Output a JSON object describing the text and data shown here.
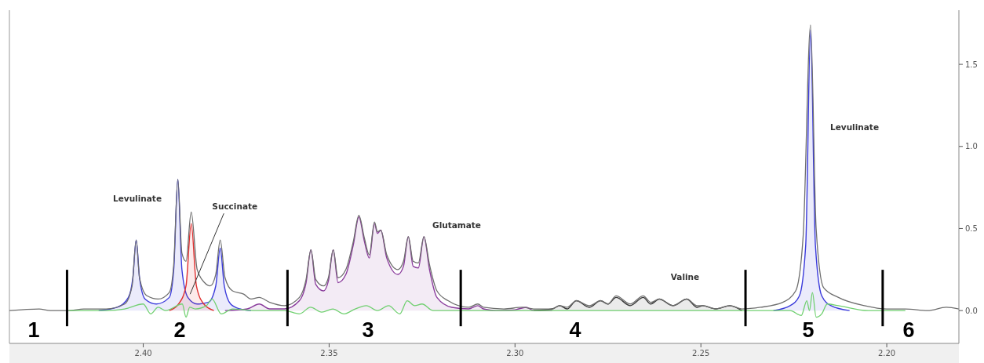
{
  "chart_data": {
    "type": "line",
    "xlim": [
      2.436,
      2.1806
    ],
    "ylim": [
      -0.2,
      1.83
    ],
    "xticks": [
      {
        "value": 2.4,
        "label": "2.40"
      },
      {
        "value": 2.35,
        "label": "2.35"
      },
      {
        "value": 2.3,
        "label": "2.30"
      },
      {
        "value": 2.25,
        "label": "2.25"
      },
      {
        "value": 2.2,
        "label": "2.20"
      }
    ],
    "yticks": [
      {
        "value": 0,
        "label": "0.0"
      },
      {
        "value": 0.5,
        "label": "0.5"
      },
      {
        "value": 1,
        "label": "1.0"
      },
      {
        "value": 1.5,
        "label": "1.5"
      }
    ],
    "grid": false,
    "series": [
      {
        "type": "area",
        "color": "#3b3bdb",
        "x": [
          2.412,
          2.407,
          2.404,
          2.4028,
          2.4019,
          2.401,
          2.3995,
          2.3965,
          2.393,
          2.3918,
          2.3907,
          2.3896,
          2.388,
          2.3855,
          2.3825,
          2.3805,
          2.3793,
          2.3782,
          2.3765,
          2.374,
          2.371,
          2.3,
          2.2305,
          2.226,
          2.2235,
          2.2218,
          2.2205,
          2.2192,
          2.2175,
          2.215,
          2.21
        ],
        "values": [
          0,
          0.02,
          0.08,
          0.2,
          0.43,
          0.2,
          0.07,
          0.04,
          0.08,
          0.25,
          0.8,
          0.25,
          0.08,
          0.04,
          0.05,
          0.15,
          0.38,
          0.15,
          0.04,
          0.01,
          0,
          null,
          0,
          0.03,
          0.09,
          0.4,
          1.71,
          0.4,
          0.09,
          0.03,
          0
        ]
      },
      {
        "type": "area",
        "color": "#e03030",
        "x": [
          2.393,
          2.3905,
          2.3885,
          2.3871,
          2.3857,
          2.3837,
          2.381
        ],
        "values": [
          0,
          0.04,
          0.15,
          0.53,
          0.15,
          0.04,
          0
        ]
      },
      {
        "type": "area",
        "color": "#8a3c9c",
        "x": [
          2.378,
          2.372,
          2.3688,
          2.366,
          2.362,
          2.358,
          2.3562,
          2.3549,
          2.3536,
          2.3515,
          2.3502,
          2.3489,
          2.3476,
          2.3455,
          2.3435,
          2.342,
          2.3405,
          2.3392,
          2.3378,
          2.337,
          2.3361,
          2.3345,
          2.3315,
          2.33,
          2.3287,
          2.3274,
          2.326,
          2.3245,
          2.323,
          2.321,
          2.317,
          2.3125,
          2.31,
          2.3085,
          2.305,
          2.3,
          2.297,
          2.295,
          2.29
        ],
        "values": [
          0,
          0.01,
          0.04,
          0.01,
          0.01,
          0.06,
          0.17,
          0.37,
          0.16,
          0.12,
          0.18,
          0.37,
          0.17,
          0.22,
          0.4,
          0.57,
          0.42,
          0.32,
          0.53,
          0.47,
          0.49,
          0.32,
          0.22,
          0.27,
          0.45,
          0.27,
          0.26,
          0.45,
          0.25,
          0.08,
          0.02,
          0.01,
          0.03,
          0.01,
          0,
          0.005,
          0.02,
          0,
          0
        ]
      },
      {
        "type": "area",
        "color": "#3a3a3a",
        "x": [
          2.295,
          2.29,
          2.288,
          2.286,
          2.2835,
          2.28,
          2.277,
          2.275,
          2.2728,
          2.269,
          2.2655,
          2.2635,
          2.2612,
          2.2575,
          2.2538,
          2.251,
          2.2495,
          2.246,
          2.2422,
          2.239
        ],
        "values": [
          0,
          0.01,
          0.03,
          0.01,
          0.06,
          0.02,
          0.06,
          0.04,
          0.08,
          0.03,
          0.08,
          0.04,
          0.07,
          0.03,
          0.07,
          0.02,
          0.03,
          0.01,
          0.03,
          0
        ]
      },
      {
        "color": "#6e6e6e",
        "x": [
          2.436,
          2.428,
          2.425,
          2.42,
          2.416,
          2.41,
          2.405,
          2.403,
          2.4019,
          2.401,
          2.399,
          2.396,
          2.393,
          2.3918,
          2.3907,
          2.3896,
          2.3885,
          2.3871,
          2.3855,
          2.3835,
          2.382,
          2.3805,
          2.3793,
          2.378,
          2.376,
          2.373,
          2.371,
          2.3688,
          2.366,
          2.362,
          2.358,
          2.3562,
          2.3549,
          2.3536,
          2.3515,
          2.3502,
          2.3489,
          2.3476,
          2.3455,
          2.3435,
          2.342,
          2.3405,
          2.3392,
          2.3378,
          2.337,
          2.3361,
          2.3345,
          2.3315,
          2.33,
          2.3287,
          2.3274,
          2.326,
          2.3245,
          2.323,
          2.321,
          2.318,
          2.3125,
          2.31,
          2.3085,
          2.303,
          2.298,
          2.295,
          2.29,
          2.288,
          2.286,
          2.2835,
          2.28,
          2.277,
          2.275,
          2.2728,
          2.269,
          2.2655,
          2.2635,
          2.2612,
          2.2575,
          2.2538,
          2.251,
          2.2495,
          2.246,
          2.2422,
          2.239,
          2.234,
          2.228,
          2.2245,
          2.2225,
          2.2205,
          2.219,
          2.217,
          2.213,
          2.206,
          2.2,
          2.195,
          2.189,
          2.184,
          2.1806
        ],
        "values": [
          0,
          0.01,
          0,
          0,
          0.01,
          0.01,
          0.04,
          0.15,
          0.43,
          0.2,
          0.09,
          0.07,
          0.11,
          0.28,
          0.8,
          0.35,
          0.3,
          0.6,
          0.25,
          0.17,
          0.15,
          0.22,
          0.43,
          0.2,
          0.12,
          0.1,
          0.07,
          0.08,
          0.05,
          0.03,
          0.08,
          0.19,
          0.37,
          0.19,
          0.15,
          0.2,
          0.37,
          0.2,
          0.25,
          0.42,
          0.58,
          0.44,
          0.34,
          0.54,
          0.48,
          0.49,
          0.34,
          0.25,
          0.3,
          0.45,
          0.3,
          0.29,
          0.45,
          0.28,
          0.12,
          0.06,
          0.02,
          0.04,
          0.02,
          0.01,
          0.02,
          0.01,
          0.01,
          0.03,
          0.02,
          0.06,
          0.03,
          0.06,
          0.04,
          0.09,
          0.04,
          0.09,
          0.05,
          0.07,
          0.03,
          0.07,
          0.03,
          0.03,
          0.01,
          0.03,
          0.01,
          0.02,
          0.05,
          0.12,
          0.45,
          1.74,
          0.5,
          0.14,
          0.08,
          0.03,
          0.01,
          0.01,
          0,
          0.02,
          0.01
        ]
      },
      {
        "color": "#70d070",
        "x": [
          2.42,
          2.41,
          2.405,
          2.4,
          2.398,
          2.396,
          2.394,
          2.3895,
          2.3885,
          2.3875,
          2.386,
          2.383,
          2.3815,
          2.379,
          2.376,
          2.37,
          2.362,
          2.358,
          2.355,
          2.352,
          2.349,
          2.346,
          2.343,
          2.34,
          2.337,
          2.334,
          2.331,
          2.329,
          2.327,
          2.325,
          2.322,
          2.318,
          2.3,
          2.25,
          2.232,
          2.226,
          2.223,
          2.2215,
          2.2208,
          2.22,
          2.219,
          2.2175,
          2.216,
          2.213,
          2.205,
          2.2,
          2.195
        ],
        "values": [
          0,
          0,
          0.01,
          0.04,
          -0.02,
          0.02,
          0,
          0.04,
          -0.04,
          0.02,
          0.01,
          0.03,
          0.07,
          -0.02,
          0.01,
          0,
          0,
          -0.02,
          0.02,
          -0.01,
          0.01,
          -0.02,
          0.01,
          0.03,
          0,
          0.03,
          -0.02,
          0.06,
          0.03,
          0.04,
          0,
          0,
          0,
          0,
          0,
          0,
          -0.03,
          0.06,
          0,
          0.11,
          -0.04,
          -0.02,
          0.04,
          0.03,
          0,
          0,
          0
        ]
      }
    ],
    "ref_lines": [
      {
        "axis": "x",
        "value": 2.4205,
        "color": "#000000"
      },
      {
        "axis": "x",
        "value": 2.3612,
        "color": "#000000"
      },
      {
        "axis": "x",
        "value": 2.3146,
        "color": "#000000"
      },
      {
        "axis": "x",
        "value": 2.238,
        "color": "#000000"
      },
      {
        "axis": "x",
        "value": 2.2011,
        "color": "#000000"
      }
    ],
    "annotations": [
      "Levulinate",
      {
        "text": "Succinate",
        "x": 2.3874,
        "y": 0.1
      },
      "Glutamate",
      "Valine",
      "Levulinate",
      "1",
      "2",
      "3",
      "4",
      "5",
      "6"
    ]
  }
}
